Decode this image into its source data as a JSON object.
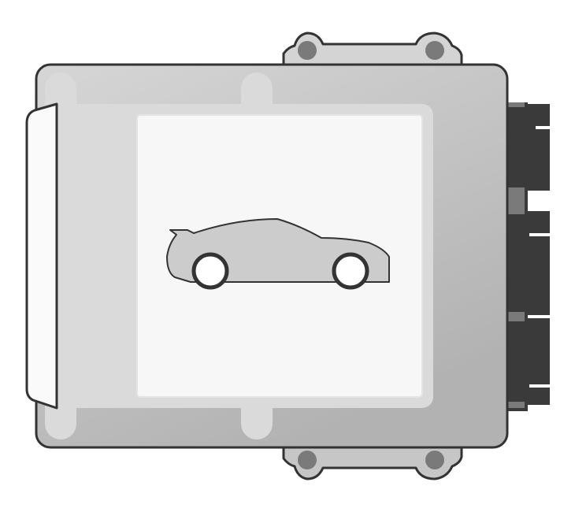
{
  "device": {
    "kind": "engine-control-unit",
    "label_icon": "sports-car-icon",
    "colors": {
      "outline": "#333333",
      "housing_light": "#d2d2d2",
      "housing_dark": "#b4b4b4",
      "inner_frame": "#dcdcdc",
      "label_panel": "#f7f7f7",
      "left_cap": "#fafafa",
      "connector_body": "#3a3a3a",
      "connector_key": "#7a7a7a",
      "bolt_hole": "#7a7a7a",
      "car_body": "#cccccc",
      "wheel_fill": "#ffffff"
    }
  }
}
